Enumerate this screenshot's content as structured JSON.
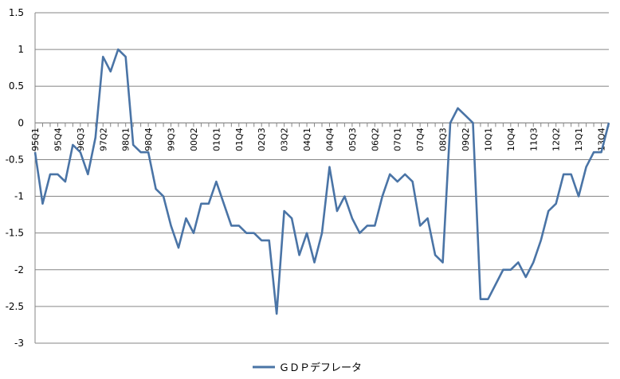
{
  "chart_data": {
    "type": "line",
    "title": "",
    "xlabel": "",
    "ylabel": "",
    "ylim": [
      -3,
      1.5
    ],
    "yticks": [
      1.5,
      1,
      0.5,
      0,
      -0.5,
      -1,
      -1.5,
      -2,
      -2.5,
      -3
    ],
    "grid": "horizontal",
    "legend_position": "bottom",
    "colors": {
      "series": "#4a74a6",
      "grid": "#868686",
      "axis": "#868686"
    },
    "x": [
      "95Q1",
      "95Q2",
      "95Q3",
      "95Q4",
      "96Q1",
      "96Q2",
      "96Q3",
      "96Q4",
      "97Q1",
      "97Q2",
      "97Q3",
      "97Q4",
      "98Q1",
      "98Q2",
      "98Q3",
      "98Q4",
      "99Q1",
      "99Q2",
      "99Q3",
      "99Q4",
      "00Q1",
      "00Q2",
      "00Q3",
      "00Q4",
      "01Q1",
      "01Q2",
      "01Q3",
      "01Q4",
      "02Q1",
      "02Q2",
      "02Q3",
      "02Q4",
      "03Q1",
      "03Q2",
      "03Q3",
      "03Q4",
      "04Q1",
      "04Q2",
      "04Q3",
      "04Q4",
      "05Q1",
      "05Q2",
      "05Q3",
      "05Q4",
      "06Q1",
      "06Q2",
      "06Q3",
      "06Q4",
      "07Q1",
      "07Q2",
      "07Q3",
      "07Q4",
      "08Q1",
      "08Q2",
      "08Q3",
      "08Q4",
      "09Q1",
      "09Q2",
      "09Q3",
      "09Q4",
      "10Q1",
      "10Q2",
      "10Q3",
      "10Q4",
      "11Q1",
      "11Q2",
      "11Q3",
      "11Q4",
      "12Q1",
      "12Q2",
      "12Q3",
      "12Q4",
      "13Q1",
      "13Q2",
      "13Q3",
      "13Q4",
      "14Q1"
    ],
    "tick_labels": [
      "95Q1",
      "95Q4",
      "96Q3",
      "97Q2",
      "98Q1",
      "98Q4",
      "99Q3",
      "00Q2",
      "01Q1",
      "01Q4",
      "02Q3",
      "03Q2",
      "04Q1",
      "04Q4",
      "05Q3",
      "06Q2",
      "07Q1",
      "07Q4",
      "08Q3",
      "09Q2",
      "10Q1",
      "10Q4",
      "11Q3",
      "12Q2",
      "13Q1",
      "13Q4"
    ],
    "series": [
      {
        "name": "ＧＤＰデフレータ",
        "values": [
          -0.4,
          -1.1,
          -0.7,
          -0.7,
          -0.8,
          -0.3,
          -0.4,
          -0.7,
          -0.2,
          0.9,
          0.7,
          1.0,
          0.9,
          -0.3,
          -0.4,
          -0.4,
          -0.9,
          -1.0,
          -1.4,
          -1.7,
          -1.3,
          -1.5,
          -1.1,
          -1.1,
          -0.8,
          -1.1,
          -1.4,
          -1.4,
          -1.5,
          -1.5,
          -1.6,
          -1.6,
          -2.6,
          -1.2,
          -1.3,
          -1.8,
          -1.5,
          -1.9,
          -1.5,
          -0.6,
          -1.2,
          -1.0,
          -1.3,
          -1.5,
          -1.4,
          -1.4,
          -1.0,
          -0.7,
          -0.8,
          -0.7,
          -0.8,
          -1.4,
          -1.3,
          -1.8,
          -1.9,
          0.0,
          0.2,
          0.1,
          0.0,
          -2.4,
          -2.4,
          -2.2,
          -2.0,
          -2.0,
          -1.9,
          -2.1,
          -1.9,
          -1.6,
          -1.2,
          -1.1,
          -0.7,
          -0.7,
          -1.0,
          -0.6,
          -0.4,
          -0.4,
          0.0
        ]
      }
    ]
  }
}
